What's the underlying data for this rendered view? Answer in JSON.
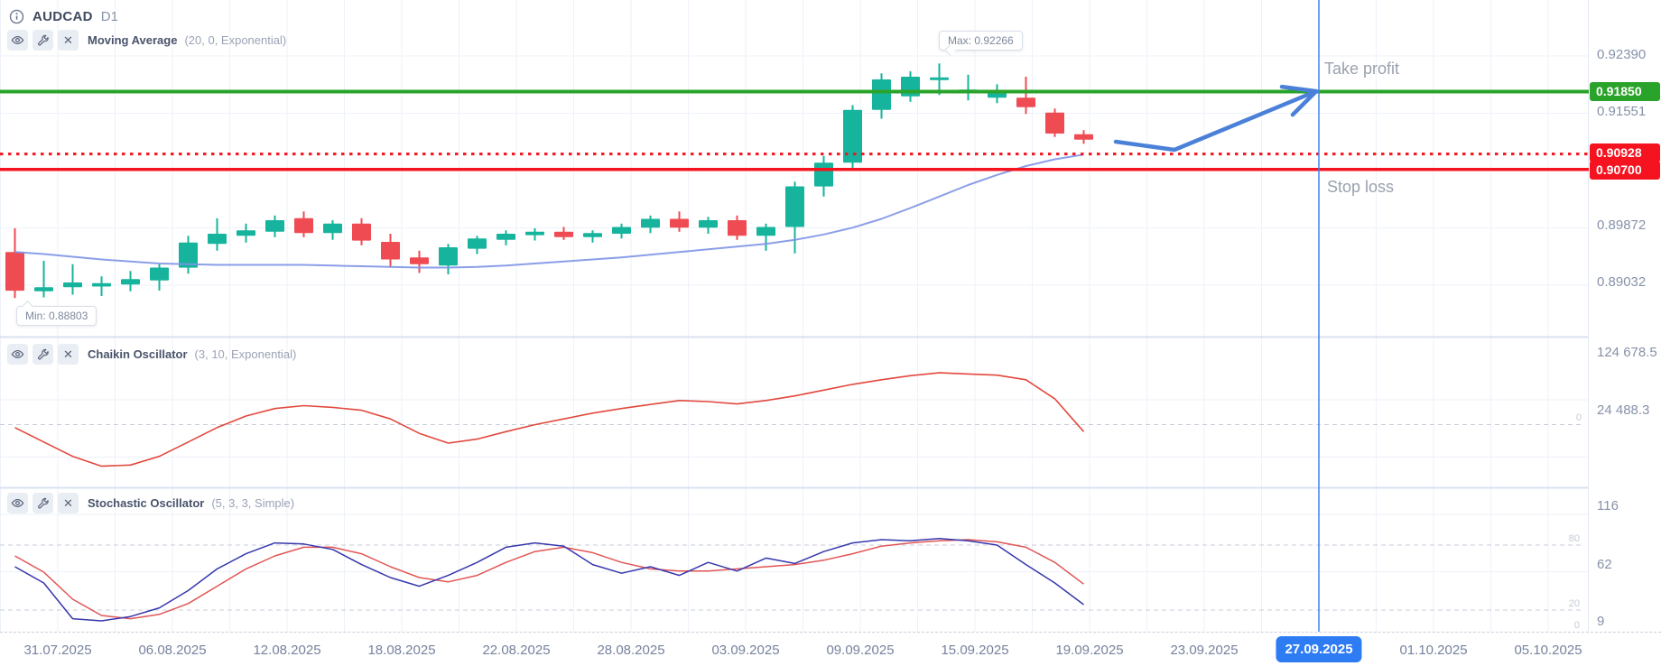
{
  "header": {
    "symbol": "AUDCAD",
    "timeframe": "D1"
  },
  "indicators": [
    {
      "name": "Moving Average",
      "params": "(20, 0, Exponential)"
    },
    {
      "name": "Chaikin Oscillator",
      "params": "(3, 10, Exponential)"
    },
    {
      "name": "Stochastic Oscillator",
      "params": "(5, 3, 3, Simple)"
    }
  ],
  "annotations": {
    "take_profit": "Take profit",
    "stop_loss": "Stop loss",
    "max_label": "Max: 0.92266",
    "min_label": "Min: 0.88803"
  },
  "levels": {
    "take_profit": {
      "label": "0.91850",
      "value": 0.9185,
      "color": "#2aa32a"
    },
    "entry": {
      "label": "0.90928",
      "value": 0.90928,
      "color": "#f5131f"
    },
    "stop_loss": {
      "label": "0.90700",
      "value": 0.907,
      "color": "#f5131f"
    }
  },
  "price_axis": [
    {
      "label": "0.92390",
      "value": 0.9239
    },
    {
      "label": "0.91551",
      "value": 0.91551
    },
    {
      "label": "0.89872",
      "value": 0.89872
    },
    {
      "label": "0.89032",
      "value": 0.89032
    }
  ],
  "chaikin_axis": {
    "labels": [
      {
        "label": "124 678.5",
        "value": 124678.5
      },
      {
        "label": "24 488.3",
        "value": 24488.3
      }
    ],
    "zero_label": "0"
  },
  "stoch_axis": {
    "labels": [
      {
        "label": "116",
        "value": 116
      },
      {
        "label": "62",
        "value": 62
      },
      {
        "label": "9",
        "value": 9
      }
    ],
    "level_labels": [
      {
        "label": "80",
        "value": 80
      },
      {
        "label": "20",
        "value": 20
      },
      {
        "label": "0",
        "value": 0
      }
    ]
  },
  "time_axis": {
    "dates": [
      "31.07.2025",
      "06.08.2025",
      "12.08.2025",
      "18.08.2025",
      "22.08.2025",
      "28.08.2025",
      "03.09.2025",
      "09.09.2025",
      "15.09.2025",
      "19.09.2025",
      "23.09.2025",
      "27.09.2025",
      "01.10.2025",
      "05.10.2025"
    ],
    "highlighted": "27.09.2025"
  },
  "colors": {
    "bull": "#16b49c",
    "bear": "#ef4b52",
    "ma": "#7e93e6",
    "take_profit": "#2aa32a",
    "stop_loss": "#f5131f",
    "chaikin": "#e2483d",
    "stoch_k": "#3737ad",
    "stoch_d": "#e25555",
    "vline": "#3f82f0",
    "date_badge": "#2e7cf4",
    "arrow": "#4a80d8"
  },
  "chart_data": {
    "type": "candlestick",
    "symbol": "AUDCAD",
    "timeframe": "D1",
    "max": 0.92266,
    "min": 0.88803,
    "levels": {
      "take_profit": 0.9185,
      "entry_dotted": 0.90928,
      "stop_loss": 0.907
    },
    "candles": [
      [
        0.8948,
        0.8983,
        0.888,
        0.8891
      ],
      [
        0.889,
        0.8935,
        0.8881,
        0.8896
      ],
      [
        0.8896,
        0.893,
        0.8885,
        0.8903
      ],
      [
        0.8897,
        0.8912,
        0.8883,
        0.8902
      ],
      [
        0.89,
        0.892,
        0.889,
        0.8908
      ],
      [
        0.8906,
        0.893,
        0.8891,
        0.8925
      ],
      [
        0.8925,
        0.8972,
        0.8916,
        0.8962
      ],
      [
        0.896,
        0.8998,
        0.895,
        0.8975
      ],
      [
        0.8972,
        0.899,
        0.8962,
        0.898
      ],
      [
        0.8978,
        0.9002,
        0.897,
        0.8995
      ],
      [
        0.8998,
        0.9008,
        0.897,
        0.8976
      ],
      [
        0.8976,
        0.8995,
        0.8966,
        0.899
      ],
      [
        0.899,
        0.8998,
        0.8958,
        0.8965
      ],
      [
        0.8963,
        0.8975,
        0.8925,
        0.8937
      ],
      [
        0.894,
        0.895,
        0.8917,
        0.893
      ],
      [
        0.8928,
        0.896,
        0.8915,
        0.8955
      ],
      [
        0.8953,
        0.8972,
        0.8945,
        0.8968
      ],
      [
        0.8966,
        0.898,
        0.8958,
        0.8975
      ],
      [
        0.8973,
        0.8983,
        0.8965,
        0.8978
      ],
      [
        0.8978,
        0.8985,
        0.8966,
        0.897
      ],
      [
        0.897,
        0.898,
        0.8962,
        0.8976
      ],
      [
        0.8975,
        0.899,
        0.8968,
        0.8985
      ],
      [
        0.8984,
        0.9002,
        0.8976,
        0.8997
      ],
      [
        0.8997,
        0.9008,
        0.8978,
        0.8984
      ],
      [
        0.8984,
        0.9,
        0.8975,
        0.8995
      ],
      [
        0.8995,
        0.9002,
        0.8966,
        0.8972
      ],
      [
        0.8972,
        0.899,
        0.895,
        0.8985
      ],
      [
        0.8985,
        0.9052,
        0.8946,
        0.9045
      ],
      [
        0.9045,
        0.909,
        0.903,
        0.908
      ],
      [
        0.908,
        0.9165,
        0.907,
        0.9158
      ],
      [
        0.9158,
        0.9212,
        0.9145,
        0.9203
      ],
      [
        0.9178,
        0.9215,
        0.917,
        0.9207
      ],
      [
        0.9202,
        0.92266,
        0.918,
        0.9206
      ],
      [
        0.9186,
        0.921,
        0.9172,
        0.9188
      ],
      [
        0.9176,
        0.9196,
        0.9168,
        0.9185
      ],
      [
        0.9176,
        0.9207,
        0.9152,
        0.9162
      ],
      [
        0.9154,
        0.916,
        0.9118,
        0.9123
      ],
      [
        0.9122,
        0.9128,
        0.9108,
        0.9114
      ]
    ],
    "ma20": [
      0.8948,
      0.8945,
      0.8941,
      0.8937,
      0.8934,
      0.8931,
      0.893,
      0.8929,
      0.8929,
      0.8929,
      0.8929,
      0.8928,
      0.8927,
      0.8926,
      0.8925,
      0.8925,
      0.8926,
      0.8928,
      0.8931,
      0.8934,
      0.8937,
      0.894,
      0.8944,
      0.8948,
      0.8952,
      0.8956,
      0.896,
      0.8966,
      0.8974,
      0.8984,
      0.8997,
      0.9013,
      0.903,
      0.9047,
      0.9062,
      0.9075,
      0.9085,
      0.9092
    ],
    "chaikin": {
      "values": [
        -5000,
        -30000,
        -55000,
        -72000,
        -70000,
        -55000,
        -30000,
        -5000,
        15000,
        28000,
        33000,
        30000,
        25000,
        10000,
        -15000,
        -32000,
        -25000,
        -12000,
        0,
        10000,
        20000,
        28000,
        35000,
        42000,
        40000,
        36000,
        42000,
        50000,
        60000,
        70000,
        78000,
        85000,
        90000,
        88000,
        86000,
        78000,
        45000,
        -12000
      ],
      "zero_line": 0
    },
    "stochastic": {
      "k": [
        60,
        45,
        12,
        10,
        14,
        22,
        38,
        58,
        72,
        82,
        81,
        76,
        62,
        50,
        42,
        52,
        64,
        78,
        82,
        79,
        62,
        54,
        60,
        52,
        64,
        56,
        68,
        63,
        74,
        82,
        85,
        84,
        86,
        84,
        80,
        62,
        45,
        25
      ],
      "d": [
        70,
        55,
        30,
        15,
        12,
        16,
        26,
        42,
        58,
        70,
        78,
        78,
        72,
        60,
        50,
        46,
        52,
        64,
        74,
        78,
        73,
        64,
        58,
        56,
        56,
        58,
        60,
        62,
        66,
        72,
        79,
        82,
        84,
        85,
        83,
        78,
        64,
        44
      ],
      "upper": 80,
      "lower": 20
    },
    "forecast_arrow": {
      "points": [
        [
          1236,
          0.9111
        ],
        [
          1301,
          0.9099
        ],
        [
          1458,
          0.91855
        ]
      ]
    },
    "vertical_line_date": "27.09.2025"
  }
}
